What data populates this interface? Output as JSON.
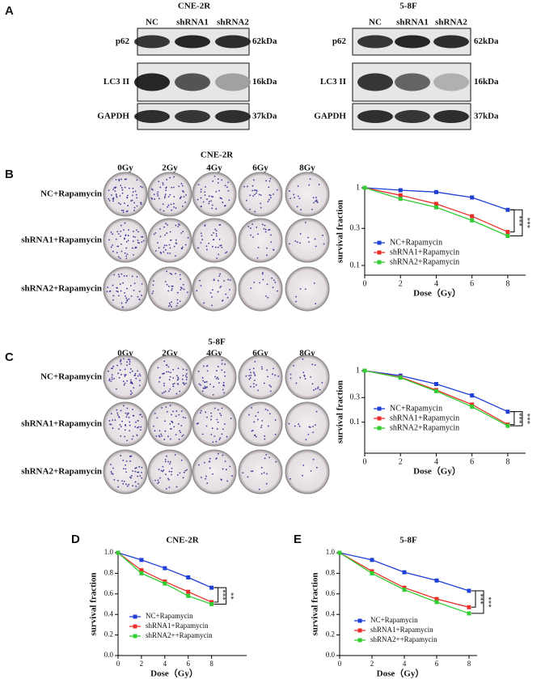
{
  "panel_labels": [
    "A",
    "B",
    "C",
    "D",
    "E"
  ],
  "blots": [
    {
      "title": "CNE-2R",
      "lanes": [
        "NC",
        "shRNA1",
        "shRNA2"
      ],
      "rows": [
        "p62",
        "LC3 II",
        "GAPDH"
      ],
      "sizes": [
        "62kDa",
        "16kDa",
        "37kDa"
      ]
    },
    {
      "title": "5-8F",
      "lanes": [
        "NC",
        "shRNA1",
        "shRNA2"
      ],
      "rows": [
        "p62",
        "LC3 II",
        "GAPDH"
      ],
      "sizes": [
        "62kDa",
        "16kDa",
        "37kDa"
      ]
    }
  ],
  "colonies": [
    {
      "title": "CNE-2R",
      "doses": [
        "0Gy",
        "2Gy",
        "4Gy",
        "6Gy",
        "8Gy"
      ],
      "rows": [
        "NC+Rapamycin",
        "shRNA1+Rapamycin",
        "shRNA2+Rapamycin"
      ]
    },
    {
      "title": "5-8F",
      "doses": [
        "0Gy",
        "2Gy",
        "4Gy",
        "6Gy",
        "8Gy"
      ],
      "rows": [
        "NC+Rapamycin",
        "shRNA1+Rapamycin",
        "shRNA2+Rapamycin"
      ]
    }
  ],
  "chart_data": [
    {
      "type": "line",
      "xlabel": "Dose（Gy）",
      "ylabel": "survival fraction",
      "log_y": true,
      "x": [
        0,
        2,
        4,
        6,
        8
      ],
      "xlim": [
        0,
        9
      ],
      "xticks": [
        0,
        2,
        4,
        6,
        8
      ],
      "ylim": [
        0.075,
        1
      ],
      "yticks": [
        1,
        0.3,
        0.1
      ],
      "series": [
        {
          "name": "NC+Rapamycin",
          "color": "#1f3fd6",
          "values": [
            1,
            0.93,
            0.88,
            0.75,
            0.52
          ]
        },
        {
          "name": "shRNA1+Rapamycin",
          "color": "#e8312a",
          "values": [
            1,
            0.8,
            0.62,
            0.43,
            0.27
          ]
        },
        {
          "name": "shRNA2+Rapamycin",
          "color": "#33cc33",
          "values": [
            1,
            0.72,
            0.56,
            0.38,
            0.24
          ]
        }
      ],
      "annotations": [
        "***",
        "***"
      ]
    },
    {
      "type": "line",
      "xlabel": "Dose（Gy）",
      "ylabel": "survival fraction",
      "log_y": true,
      "x": [
        0,
        2,
        4,
        6,
        8
      ],
      "xlim": [
        0,
        9
      ],
      "xticks": [
        0,
        2,
        4,
        6,
        8
      ],
      "ylim": [
        0.025,
        1
      ],
      "yticks": [
        1,
        0.3,
        0.1
      ],
      "series": [
        {
          "name": "NC+Rapamycin",
          "color": "#1f3fd6",
          "values": [
            1,
            0.8,
            0.55,
            0.33,
            0.16
          ]
        },
        {
          "name": "shRNA1+Rapamycin",
          "color": "#e8312a",
          "values": [
            1,
            0.75,
            0.42,
            0.22,
            0.09
          ]
        },
        {
          "name": "shRNA2+Rapamycin",
          "color": "#33cc33",
          "values": [
            1,
            0.73,
            0.4,
            0.2,
            0.085
          ]
        }
      ],
      "annotations": [
        "***",
        "***"
      ]
    },
    {
      "type": "line",
      "title": "CNE-2R",
      "xlabel": "Dose（Gy）",
      "ylabel": "survival fraction",
      "log_y": false,
      "x": [
        0,
        2,
        4,
        6,
        8
      ],
      "xlim": [
        0,
        11
      ],
      "xticks": [
        0,
        2,
        4,
        6,
        8
      ],
      "ylim": [
        0,
        1
      ],
      "yticks": [
        {
          "value": 0,
          "label": "0.0"
        },
        0.2,
        0.4,
        0.6,
        0.8,
        {
          "value": 1,
          "label": "1.0"
        }
      ],
      "series": [
        {
          "name": "NC+Rapamycin",
          "color": "#1f3fd6",
          "values": [
            1,
            0.93,
            0.85,
            0.76,
            0.66
          ]
        },
        {
          "name": "shRNA1+Rapamycin",
          "color": "#e8312a",
          "values": [
            1,
            0.83,
            0.72,
            0.62,
            0.52
          ]
        },
        {
          "name": "shRNA2++Rapamycin",
          "color": "#33cc33",
          "values": [
            1,
            0.8,
            0.7,
            0.58,
            0.5
          ]
        }
      ],
      "annotations": [
        "***",
        "**"
      ]
    },
    {
      "type": "line",
      "title": "5-8F",
      "xlabel": "Dose（Gy）",
      "ylabel": "survival fraction",
      "log_y": false,
      "x": [
        0,
        2,
        4,
        6,
        8
      ],
      "xlim": [
        0,
        8.5
      ],
      "xticks": [
        0,
        2,
        4,
        6,
        8
      ],
      "ylim": [
        0,
        1
      ],
      "yticks": [
        {
          "value": 0,
          "label": "0.0"
        },
        0.2,
        0.4,
        0.6,
        0.8,
        {
          "value": 1,
          "label": "1.0"
        }
      ],
      "series": [
        {
          "name": "NC+Rapamycin",
          "color": "#1f3fd6",
          "values": [
            1,
            0.93,
            0.81,
            0.73,
            0.63
          ]
        },
        {
          "name": "shRNA1+Rapamycin",
          "color": "#e8312a",
          "values": [
            1,
            0.82,
            0.66,
            0.55,
            0.47
          ]
        },
        {
          "name": "shRNA2++Rapamycin",
          "color": "#33cc33",
          "values": [
            1,
            0.8,
            0.64,
            0.52,
            0.41
          ]
        }
      ],
      "annotations": [
        "***",
        "***"
      ]
    }
  ]
}
